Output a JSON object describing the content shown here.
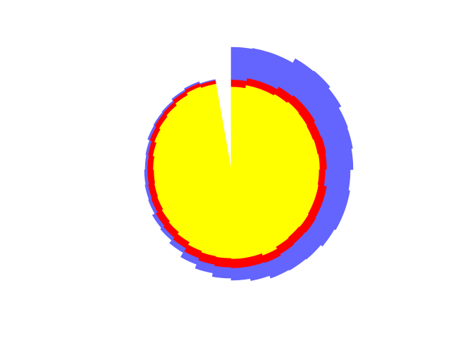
{
  "chart_data": {
    "type": "polar-stacked-bar",
    "stack_order": [
      "yellow",
      "red",
      "blue"
    ],
    "bar_count": 36,
    "theta_start_deg": 90,
    "direction": "clockwise",
    "colors": {
      "yellow": "#ffff00",
      "red": "#ff0000",
      "blue": "#6464ff"
    },
    "series": [
      {
        "key": "yellow",
        "values": [
          118,
          122,
          122,
          124,
          126,
          125,
          124,
          125,
          126,
          125,
          126,
          126,
          127,
          126,
          127,
          130,
          127,
          127,
          126,
          125,
          123,
          119,
          116,
          114,
          112,
          111,
          110,
          111,
          113,
          116,
          118,
          120,
          123,
          126,
          124,
          124
        ]
      },
      {
        "key": "red",
        "values": [
          10,
          10,
          10,
          12,
          12,
          13,
          12,
          12,
          10,
          9,
          12,
          12,
          12,
          12,
          12,
          11,
          13,
          13,
          13,
          12,
          11,
          10,
          10,
          10,
          9,
          9,
          9,
          8,
          7,
          7,
          7,
          6,
          6,
          5,
          5,
          3
        ]
      },
      {
        "key": "blue",
        "values": [
          46,
          43,
          43,
          46,
          45,
          42,
          40,
          38,
          37,
          35,
          33,
          33,
          30,
          28,
          26,
          23,
          20,
          17,
          15,
          12,
          9,
          7,
          5,
          5,
          4,
          4,
          4,
          3,
          3,
          3,
          2,
          2,
          2,
          2,
          1,
          1
        ]
      }
    ],
    "missing_sectors": [
      35
    ],
    "axes_visible": false,
    "grid": false
  }
}
